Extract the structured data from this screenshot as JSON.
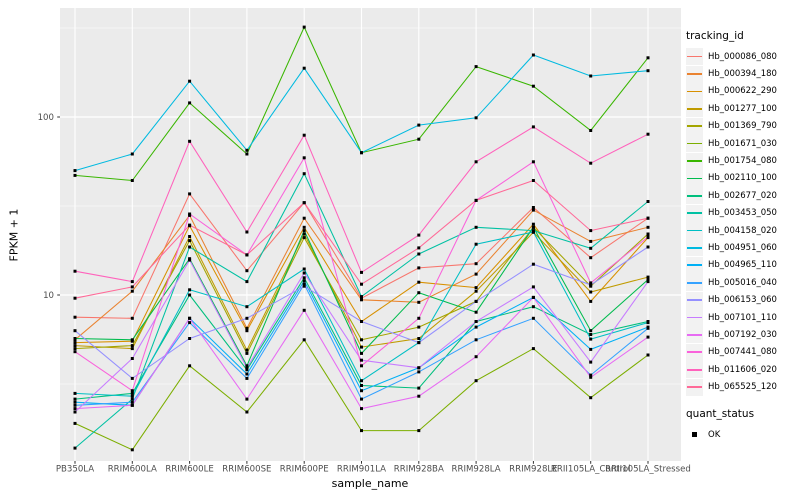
{
  "figure": {
    "panel_background": "#EBEBEB",
    "grid_color": "#FFFFFF",
    "tick_label_color": "#4D4D4D",
    "point_color": "#000000",
    "legend_key_background": "#F2F2F2"
  },
  "axes": {
    "xlabel": "sample_name",
    "ylabel": "FPKM + 1",
    "y_tick_labels": [
      "100",
      "10"
    ]
  },
  "legend": {
    "color_title": "tracking_id",
    "shape_title": "quant_status",
    "shape_items": [
      {
        "label": "OK"
      }
    ]
  },
  "chart_data": {
    "type": "line",
    "title": "",
    "xlabel": "sample_name",
    "ylabel": "FPKM + 1",
    "y_scale": "log10",
    "y_major_ticks": [
      10,
      100
    ],
    "y_minor_gridlines": [
      3.162,
      31.62,
      316.2
    ],
    "ylim_approx": [
      1.3,
      410
    ],
    "grid": true,
    "legend_position": "right",
    "categories": [
      "PB350LA",
      "RRIM600LA",
      "RRIM600LE",
      "RRIM600SE",
      "RRIM600PE",
      "RRIM901LA",
      "RRIM928BA",
      "RRIM928LA",
      "RRIM928LE",
      "RRII105LA_Control",
      "RRII105LA_Stressed"
    ],
    "series": [
      {
        "name": "Hb_000086_080",
        "color": "#F8766D",
        "values": [
          7.5,
          7.4,
          37,
          13.7,
          33,
          9.6,
          14.2,
          15,
          31,
          16.2,
          27
        ]
      },
      {
        "name": "Hb_000394_180",
        "color": "#EA8331",
        "values": [
          5.6,
          10.5,
          28,
          6.5,
          27,
          9.4,
          9.1,
          13.1,
          30,
          20,
          24
        ]
      },
      {
        "name": "Hb_000622_290",
        "color": "#D89000",
        "values": [
          5.4,
          5.5,
          24.5,
          6.3,
          24,
          7.1,
          11.8,
          11,
          25,
          9.2,
          21
        ]
      },
      {
        "name": "Hb_001277_100",
        "color": "#C09B00",
        "values": [
          5.2,
          5.0,
          21.3,
          4.9,
          22,
          5.1,
          5.7,
          10.5,
          22.5,
          10.4,
          12.6
        ]
      },
      {
        "name": "Hb_001369_790",
        "color": "#A3A500",
        "values": [
          5.0,
          5.2,
          20.2,
          4.7,
          21,
          5.6,
          6.6,
          9.2,
          24,
          11.2,
          22
        ]
      },
      {
        "name": "Hb_001671_030",
        "color": "#7CAE00",
        "values": [
          1.9,
          1.35,
          4.0,
          2.2,
          5.6,
          1.73,
          1.73,
          3.3,
          5.0,
          2.65,
          4.6
        ]
      },
      {
        "name": "Hb_001754_080",
        "color": "#39B600",
        "values": [
          47,
          44,
          120,
          62,
          320,
          63,
          75,
          192,
          149,
          84,
          215
        ]
      },
      {
        "name": "Hb_002110_100",
        "color": "#00BB4E",
        "values": [
          5.7,
          5.6,
          16,
          4.0,
          23,
          4.7,
          10.3,
          8.0,
          24,
          6.3,
          12.2
        ]
      },
      {
        "name": "Hb_002677_020",
        "color": "#00BF7D",
        "values": [
          2.6,
          2.8,
          10,
          3.8,
          12.5,
          3.1,
          3.0,
          7.1,
          8.6,
          6.0,
          7.1
        ]
      },
      {
        "name": "Hb_003453_050",
        "color": "#00C1A3",
        "values": [
          1.38,
          2.6,
          18.6,
          11.9,
          48,
          9.8,
          17,
          24,
          23,
          18.3,
          33.5
        ]
      },
      {
        "name": "Hb_004158_020",
        "color": "#00BFC4",
        "values": [
          2.8,
          2.7,
          10.7,
          8.6,
          14,
          3.3,
          5.4,
          19.3,
          22.6,
          5.65,
          7.0
        ]
      },
      {
        "name": "Hb_004951_060",
        "color": "#00BAE0",
        "values": [
          50,
          62,
          159,
          65,
          188,
          63,
          90,
          99,
          223,
          170,
          182
        ]
      },
      {
        "name": "Hb_004965_110",
        "color": "#00B0F6",
        "values": [
          2.5,
          2.4,
          7.4,
          3.6,
          12,
          2.9,
          3.9,
          6.6,
          9.7,
          4.95,
          6.6
        ]
      },
      {
        "name": "Hb_005016_040",
        "color": "#35A2FF",
        "values": [
          2.4,
          2.5,
          7.0,
          3.4,
          11.5,
          2.6,
          3.7,
          5.6,
          7.4,
          3.55,
          6.5
        ]
      },
      {
        "name": "Hb_006153_060",
        "color": "#9590FF",
        "values": [
          6.3,
          3.4,
          5.7,
          7.4,
          11.2,
          7.1,
          5.4,
          9.2,
          14.9,
          11.4,
          18.6
        ]
      },
      {
        "name": "Hb_007101_110",
        "color": "#C77CFF",
        "values": [
          2.2,
          4.4,
          15.7,
          3.9,
          13.3,
          4.3,
          3.9,
          7.1,
          11.1,
          4.2,
          11.9
        ]
      },
      {
        "name": "Hb_007192_030",
        "color": "#E76BF3",
        "values": [
          2.3,
          2.4,
          7.4,
          2.6,
          8.2,
          2.3,
          2.7,
          4.5,
          9.7,
          3.45,
          5.8
        ]
      },
      {
        "name": "Hb_007441_080",
        "color": "#FA62DB",
        "values": [
          4.8,
          2.9,
          28.5,
          16.8,
          59,
          4.0,
          7.4,
          34,
          56,
          11.7,
          21.2
        ]
      },
      {
        "name": "Hb_011606_020",
        "color": "#FF62BC",
        "values": [
          13.6,
          11.9,
          73,
          22.6,
          79,
          13.4,
          21.7,
          56,
          88,
          55,
          80
        ]
      },
      {
        "name": "Hb_065525_120",
        "color": "#FF6A98",
        "values": [
          9.6,
          11.1,
          24.7,
          16.8,
          33,
          11.5,
          18.4,
          34,
          44,
          23,
          27
        ]
      }
    ]
  }
}
